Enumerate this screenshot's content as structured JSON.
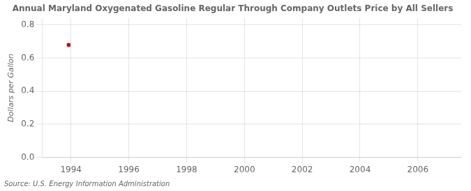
{
  "chart_data": {
    "type": "scatter",
    "title": "Annual Maryland Oxygenated Gasoline Regular Through Company Outlets Price by All Sellers",
    "ylabel": "Dollars per Gallon",
    "source": "Source: U.S. Energy Information Administration",
    "x": [
      1993.92
    ],
    "values": [
      0.679
    ],
    "color": "#cc0000",
    "marker": "square",
    "xlim": [
      1993.0,
      2007.5
    ],
    "ylim": [
      0.0,
      0.84
    ],
    "xticks": [
      1994,
      1996,
      1998,
      2000,
      2002,
      2004,
      2006
    ],
    "yticks": [
      {
        "value": 0.0,
        "label": "0.0"
      },
      0.2,
      0.4,
      0.6,
      0.8
    ],
    "grid": true
  }
}
